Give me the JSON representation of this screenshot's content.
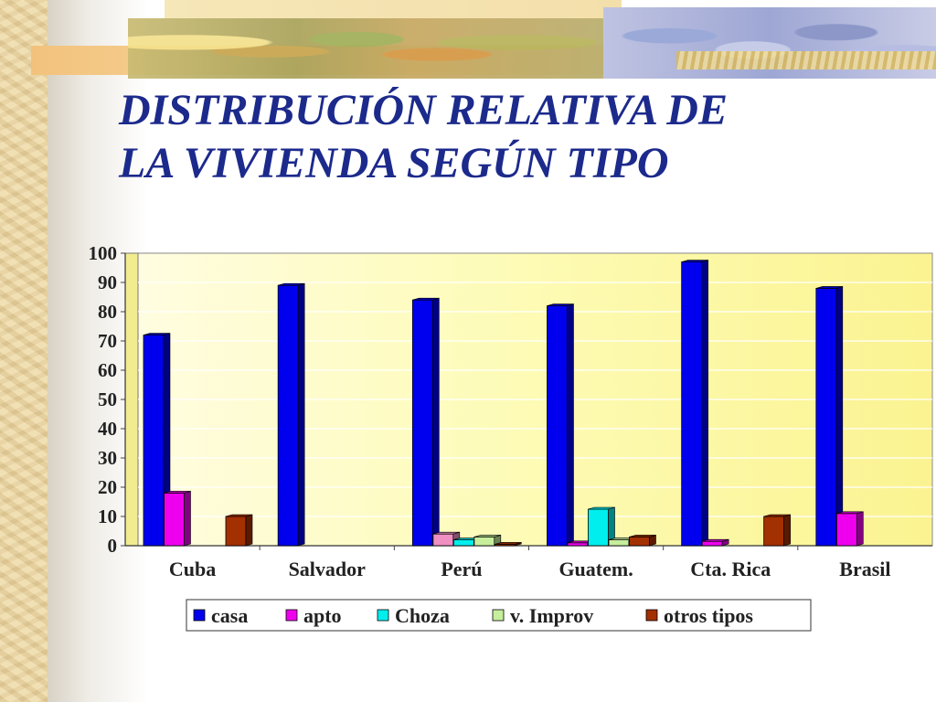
{
  "title_lines": [
    "DISTRIBUCIÓN RELATIVA DE",
    "LA VIVIENDA SEGÚN TIPO"
  ],
  "colors": {
    "title": "#1c2a8c",
    "plot_bg": "#fdfbb4",
    "casa": "#0000ee",
    "apto": "#ee00ee",
    "choza": "#00eeee",
    "v_improv": "#c6ee9c",
    "otros_tipos": "#a33000",
    "peru_apto_variant": "#ef8fc2"
  },
  "chart_data": {
    "type": "bar",
    "categories": [
      "Cuba",
      "Salvador",
      "Perú",
      "Guatem.",
      "Cta. Rica",
      "Brasil"
    ],
    "series": [
      {
        "name": "casa",
        "values": [
          72,
          89,
          84,
          82,
          97,
          88
        ]
      },
      {
        "name": "apto",
        "values": [
          18,
          0,
          4,
          1,
          1.5,
          11
        ]
      },
      {
        "name": "Choza",
        "values": [
          0,
          0,
          2,
          12.5,
          0,
          0
        ]
      },
      {
        "name": "v. Improv",
        "values": [
          0,
          0,
          3,
          2,
          0,
          0
        ]
      },
      {
        "name": "otros tipos",
        "values": [
          10,
          0,
          0.5,
          3,
          10,
          0
        ]
      }
    ],
    "ylim": [
      0,
      100
    ],
    "yticks": [
      "0",
      "10",
      "20",
      "30",
      "40",
      "50",
      "60",
      "70",
      "80",
      "90",
      "100"
    ],
    "grid": true,
    "legend_position": "bottom"
  }
}
